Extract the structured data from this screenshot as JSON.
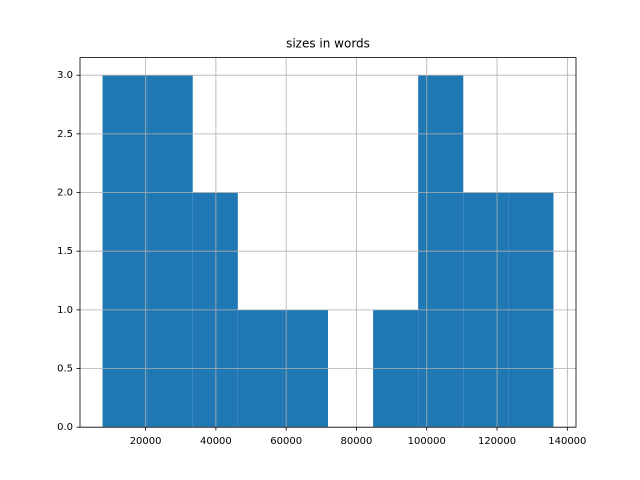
{
  "chart_data": {
    "type": "histogram",
    "title": "sizes in words",
    "bins": [
      7750,
      20580,
      33410,
      46240,
      59070,
      71900,
      84730,
      97560,
      110390,
      123220,
      136050
    ],
    "values": [
      3,
      3,
      2,
      1,
      1,
      0,
      1,
      3,
      2,
      2
    ],
    "color": "#1f77b4",
    "xlim": [
      1335,
      142465
    ],
    "xticks": [
      20000,
      40000,
      60000,
      80000,
      100000,
      120000,
      140000
    ],
    "ylim": [
      0,
      3.15
    ],
    "yticks": [
      {
        "value": 0,
        "label": "0.0"
      },
      {
        "value": 0.5,
        "label": "0.5"
      },
      {
        "value": 1,
        "label": "1.0"
      },
      {
        "value": 1.5,
        "label": "1.5"
      },
      {
        "value": 2,
        "label": "2.0"
      },
      {
        "value": 2.5,
        "label": "2.5"
      },
      {
        "value": 3,
        "label": "3.0"
      }
    ],
    "grid": true
  }
}
